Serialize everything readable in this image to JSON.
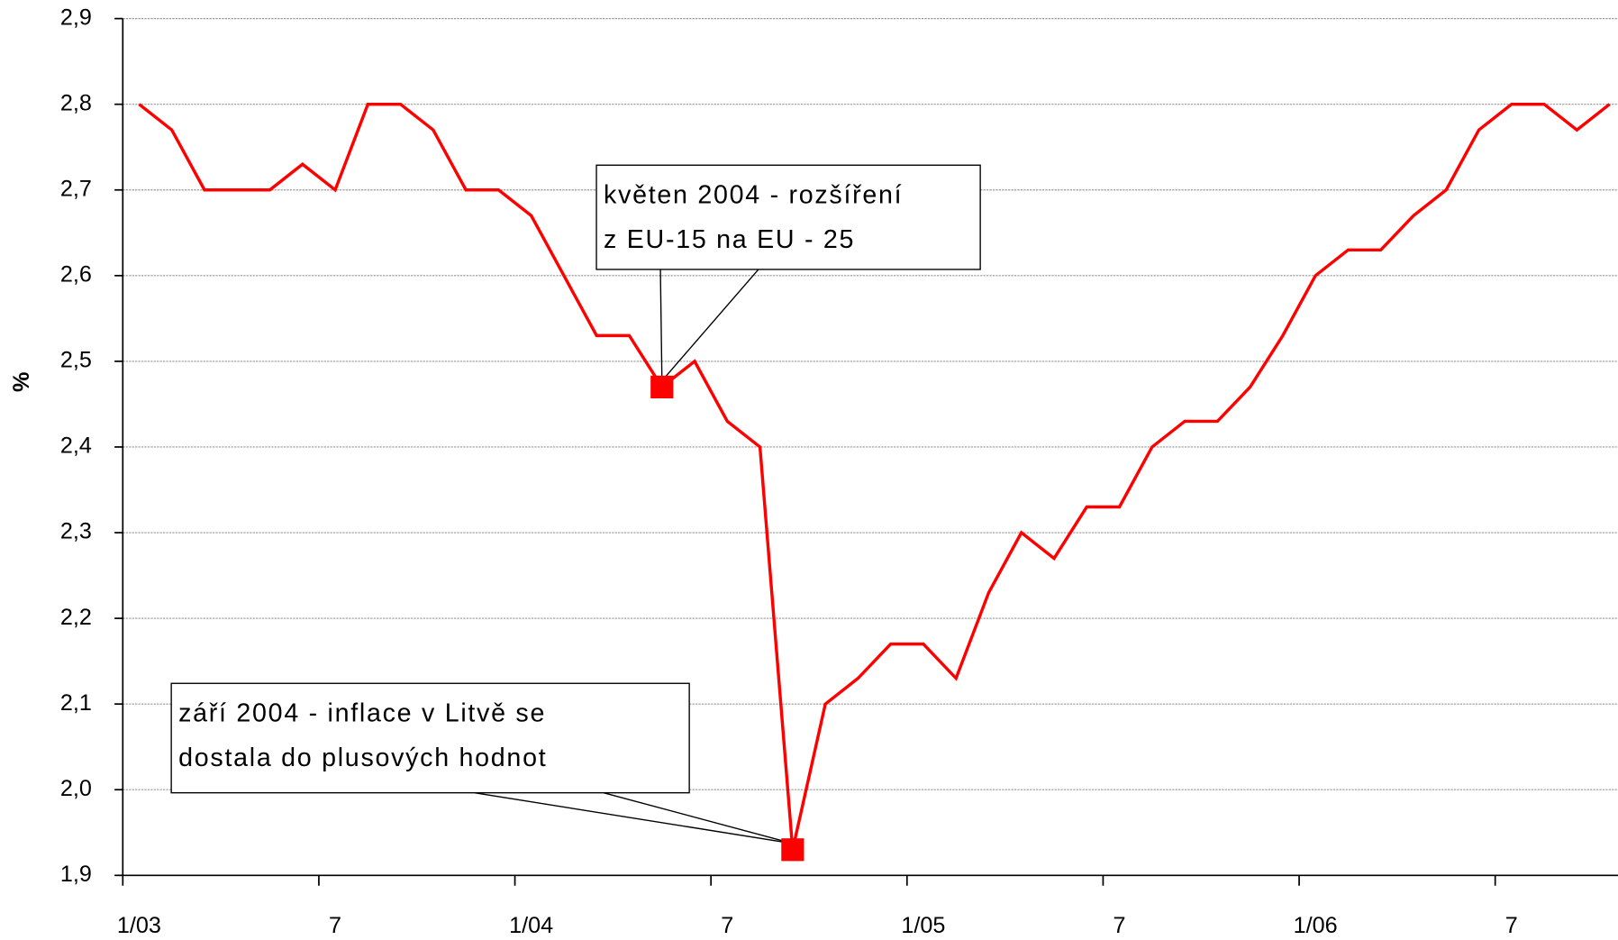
{
  "chart_data": {
    "type": "line",
    "ylabel": "%",
    "categories": [
      "1/03",
      null,
      null,
      null,
      null,
      null,
      "7",
      null,
      null,
      null,
      null,
      null,
      "1/04",
      null,
      null,
      null,
      null,
      null,
      "7",
      null,
      null,
      null,
      null,
      null,
      "1/05",
      null,
      null,
      null,
      null,
      null,
      "7",
      null,
      null,
      null,
      null,
      null,
      "1/06",
      null,
      null,
      null,
      null,
      null,
      "7",
      null,
      null,
      null
    ],
    "series": [
      {
        "color": "#ff0000",
        "values": [
          2.8,
          2.77,
          2.7,
          2.7,
          2.7,
          2.73,
          2.7,
          2.8,
          2.8,
          2.77,
          2.7,
          2.7,
          2.67,
          2.6,
          2.53,
          2.53,
          2.47,
          2.5,
          2.43,
          2.4,
          1.93,
          2.1,
          2.13,
          2.17,
          2.17,
          2.13,
          2.23,
          2.3,
          2.27,
          2.33,
          2.33,
          2.4,
          2.43,
          2.43,
          2.47,
          2.53,
          2.6,
          2.63,
          2.63,
          2.67,
          2.7,
          2.77,
          2.8,
          2.8,
          2.77,
          2.8
        ]
      }
    ],
    "ylim": [
      1.9,
      2.9
    ],
    "yticks": [
      {
        "value": 1.9,
        "label": "1,9"
      },
      {
        "value": 2.0,
        "label": "2,0"
      },
      {
        "value": 2.1,
        "label": "2,1"
      },
      {
        "value": 2.2,
        "label": "2,2"
      },
      {
        "value": 2.3,
        "label": "2,3"
      },
      {
        "value": 2.4,
        "label": "2,4"
      },
      {
        "value": 2.5,
        "label": "2,5"
      },
      {
        "value": 2.6,
        "label": "2,6"
      },
      {
        "value": 2.7,
        "label": "2,7"
      },
      {
        "value": 2.8,
        "label": "2,8"
      },
      {
        "value": 2.9,
        "label": "2,9"
      }
    ],
    "grid": true,
    "annotations": [
      {
        "lines": [
          "květen 2004 - rozšíření",
          "z EU-15 na EU - 25"
        ]
      },
      {
        "lines": [
          "září 2004 - inflace v Litvě se",
          "dostala do plusových hodnot"
        ]
      }
    ]
  }
}
